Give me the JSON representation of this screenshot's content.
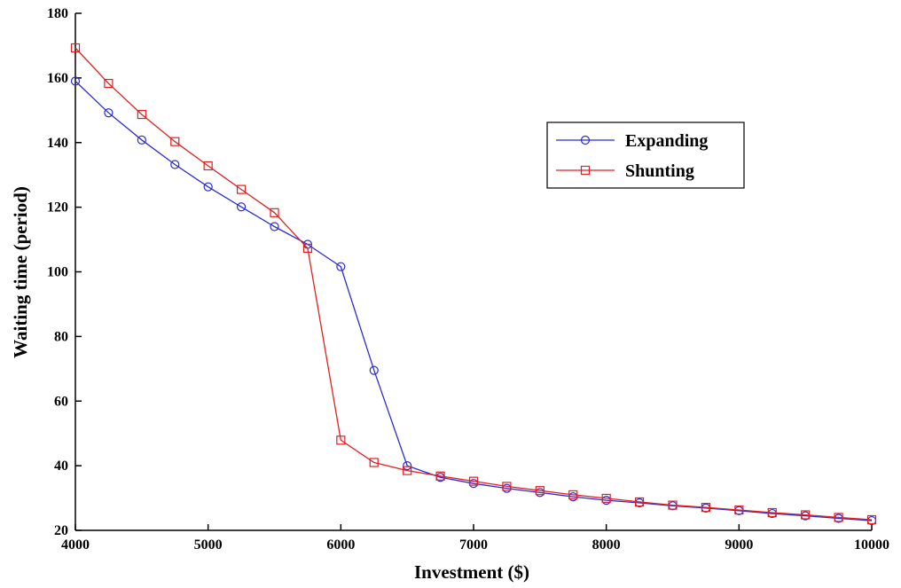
{
  "chart_data": {
    "type": "line",
    "xlabel": "Investment ($)",
    "ylabel": "Waiting time (period)",
    "xlim": [
      4000,
      10000
    ],
    "ylim": [
      20,
      180
    ],
    "xticks": [
      4000,
      5000,
      6000,
      7000,
      8000,
      9000,
      10000
    ],
    "yticks": [
      20,
      40,
      60,
      80,
      100,
      120,
      140,
      160,
      180
    ],
    "grid": false,
    "legend_position": "upper-right",
    "x": [
      4000,
      4250,
      4500,
      4750,
      5000,
      5250,
      5500,
      5750,
      6000,
      6250,
      6500,
      6750,
      7000,
      7250,
      7500,
      7750,
      8000,
      8250,
      8500,
      8750,
      9000,
      9250,
      9500,
      9750,
      10000
    ],
    "series": [
      {
        "name": "Expanding",
        "color": "#2b2bd6",
        "marker": "circle",
        "values": [
          159,
          149.2,
          140.8,
          133.2,
          126.3,
          120.1,
          114.0,
          108.5,
          101.6,
          69.5,
          40.0,
          36.4,
          34.5,
          33.0,
          31.7,
          30.4,
          29.3,
          28.5,
          27.6,
          26.9,
          26.1,
          25.2,
          24.5,
          23.7,
          23.0
        ]
      },
      {
        "name": "Shunting",
        "color": "#e02020",
        "marker": "square",
        "values": [
          169.3,
          158.3,
          148.7,
          140.3,
          132.8,
          125.5,
          118.3,
          107.3,
          47.9,
          41.0,
          38.5,
          36.8,
          35.2,
          33.6,
          32.3,
          31.0,
          29.9,
          28.8,
          27.8,
          27.1,
          26.3,
          25.5,
          24.8,
          24.0,
          23.3
        ]
      }
    ]
  }
}
